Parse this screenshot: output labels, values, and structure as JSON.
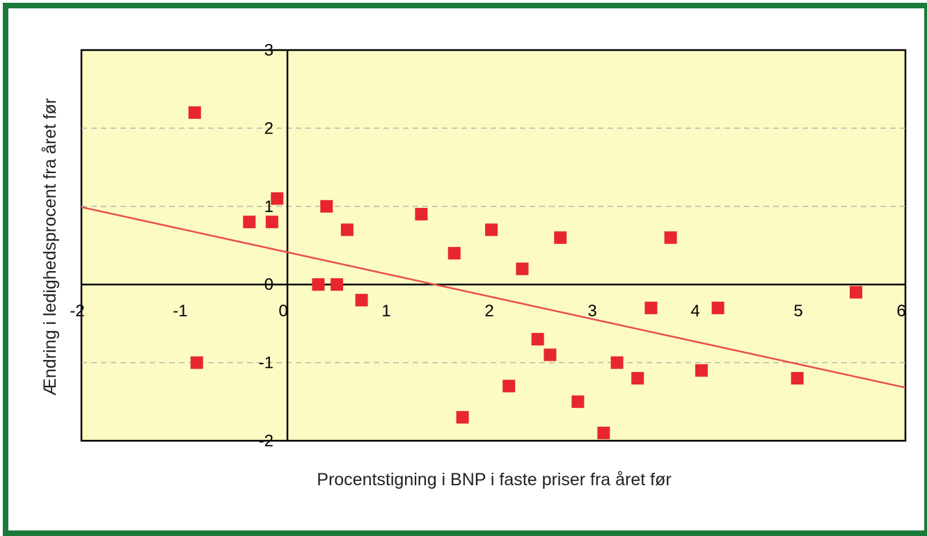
{
  "chart_data": {
    "type": "scatter",
    "xlabel": "Procentstigning i BNP i faste priser fra året før",
    "ylabel": "Ændring i ledighedsprocent  fra året før",
    "xlim": [
      -2,
      6
    ],
    "ylim": [
      -2,
      3
    ],
    "x_ticks": [
      "-2",
      "-1",
      "0",
      "1",
      "2",
      "3",
      "4",
      "5",
      "6"
    ],
    "y_ticks": [
      "-2",
      "-1",
      "0",
      "1",
      "2",
      "3"
    ],
    "grid": "horizontal dashed",
    "points": [
      {
        "x": -0.9,
        "y": 2.2
      },
      {
        "x": -0.88,
        "y": -1.0
      },
      {
        "x": -0.37,
        "y": 0.8
      },
      {
        "x": -0.15,
        "y": 0.8
      },
      {
        "x": -0.1,
        "y": 1.1
      },
      {
        "x": 0.3,
        "y": 0.0
      },
      {
        "x": 0.38,
        "y": 1.0
      },
      {
        "x": 0.48,
        "y": 0.0
      },
      {
        "x": 0.58,
        "y": 0.7
      },
      {
        "x": 0.72,
        "y": -0.2
      },
      {
        "x": 1.3,
        "y": 0.9
      },
      {
        "x": 1.62,
        "y": 0.4
      },
      {
        "x": 1.7,
        "y": -1.7
      },
      {
        "x": 1.98,
        "y": 0.7
      },
      {
        "x": 2.15,
        "y": -1.3
      },
      {
        "x": 2.28,
        "y": 0.2
      },
      {
        "x": 2.43,
        "y": -0.7
      },
      {
        "x": 2.55,
        "y": -0.9
      },
      {
        "x": 2.65,
        "y": 0.6
      },
      {
        "x": 2.82,
        "y": -1.5
      },
      {
        "x": 3.07,
        "y": -1.9
      },
      {
        "x": 3.2,
        "y": -1.0
      },
      {
        "x": 3.4,
        "y": -1.2
      },
      {
        "x": 3.53,
        "y": -0.3
      },
      {
        "x": 3.72,
        "y": 0.6
      },
      {
        "x": 4.02,
        "y": -1.1
      },
      {
        "x": 4.18,
        "y": -0.3
      },
      {
        "x": 4.95,
        "y": -1.2
      },
      {
        "x": 5.52,
        "y": -0.1
      }
    ],
    "trendline": {
      "x": [
        -2,
        6
      ],
      "y": [
        0.99,
        -1.32
      ]
    },
    "colors": {
      "plot_bg": "#fcfbc4",
      "points": "#e8262e",
      "trendline": "#e85050",
      "frame": "#1b7a3a"
    }
  }
}
